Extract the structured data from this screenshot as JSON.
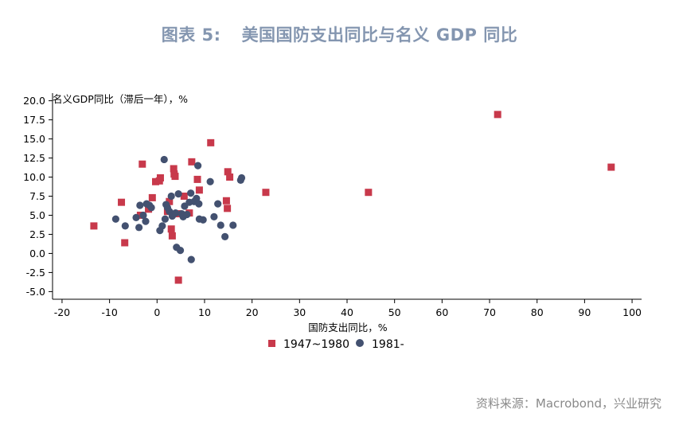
{
  "figure": {
    "number": "图表 5:",
    "title": "美国国防支出同比与名义 GDP 同比",
    "source": "资料来源：Macrobond，兴业研究"
  },
  "colors": {
    "series1": "#c8394b",
    "series2": "#435170",
    "title": "#8496b0"
  },
  "chart_data": {
    "type": "scatter",
    "xlabel": "国防支出同比，%",
    "ylabel": "名义GDP同比（滞后一年），%",
    "xlim": [
      -22,
      102
    ],
    "ylim": [
      -6,
      21
    ],
    "xticks": [
      -20,
      -10,
      0,
      10,
      20,
      30,
      40,
      50,
      60,
      70,
      80,
      90,
      100
    ],
    "xtick_labels": [
      "-20",
      "-10",
      "0",
      "10",
      "20",
      "30",
      "40",
      "50",
      "60",
      "70",
      "80",
      "90",
      "100"
    ],
    "yticks": [
      -5,
      -2.5,
      0,
      2.5,
      5,
      7.5,
      10,
      12.5,
      15,
      17.5,
      20
    ],
    "ytick_labels": [
      "-5.0",
      "-2.5",
      "0.0",
      "2.5",
      "5.0",
      "7.5",
      "10.0",
      "12.5",
      "15.0",
      "17.5",
      "20.0"
    ],
    "grid": false,
    "legend_position": "bottom-center",
    "series": [
      {
        "name": "1947~1980",
        "marker": "square",
        "points": [
          [
            -13.3,
            3.6
          ],
          [
            -7.5,
            6.7
          ],
          [
            -6.8,
            1.4
          ],
          [
            -3.5,
            5.0
          ],
          [
            -3.1,
            11.7
          ],
          [
            -1.8,
            5.8
          ],
          [
            -1.0,
            7.3
          ],
          [
            -0.3,
            9.4
          ],
          [
            0.5,
            9.5
          ],
          [
            0.7,
            9.9
          ],
          [
            2.2,
            5.5
          ],
          [
            2.6,
            6.8
          ],
          [
            3.0,
            3.2
          ],
          [
            3.2,
            2.3
          ],
          [
            3.5,
            11.1
          ],
          [
            3.6,
            10.4
          ],
          [
            3.8,
            10.1
          ],
          [
            4.3,
            5.2
          ],
          [
            4.5,
            -3.5
          ],
          [
            5.7,
            7.5
          ],
          [
            6.8,
            5.3
          ],
          [
            7.3,
            12.0
          ],
          [
            8.5,
            9.7
          ],
          [
            8.9,
            8.3
          ],
          [
            11.3,
            14.5
          ],
          [
            14.6,
            6.9
          ],
          [
            14.8,
            5.9
          ],
          [
            14.9,
            10.7
          ],
          [
            15.3,
            10.0
          ],
          [
            22.9,
            8.0
          ],
          [
            44.5,
            8.0
          ],
          [
            71.7,
            18.2
          ],
          [
            95.6,
            11.3
          ]
        ]
      },
      {
        "name": "1981-",
        "marker": "circle",
        "points": [
          [
            -8.7,
            4.5
          ],
          [
            -6.7,
            3.6
          ],
          [
            -4.4,
            4.7
          ],
          [
            -3.8,
            3.4
          ],
          [
            -3.6,
            6.3
          ],
          [
            -2.9,
            5.0
          ],
          [
            -2.4,
            4.2
          ],
          [
            -2.2,
            6.5
          ],
          [
            -1.6,
            6.3
          ],
          [
            -1.2,
            6.0
          ],
          [
            0.6,
            3.0
          ],
          [
            1.1,
            3.6
          ],
          [
            1.5,
            12.3
          ],
          [
            1.7,
            4.5
          ],
          [
            1.9,
            6.4
          ],
          [
            2.2,
            6.0
          ],
          [
            2.6,
            5.5
          ],
          [
            3.0,
            7.5
          ],
          [
            3.2,
            4.9
          ],
          [
            3.9,
            5.3
          ],
          [
            4.1,
            0.8
          ],
          [
            4.5,
            7.8
          ],
          [
            4.9,
            0.4
          ],
          [
            5.2,
            5.2
          ],
          [
            5.5,
            4.8
          ],
          [
            5.8,
            6.2
          ],
          [
            6.3,
            5.1
          ],
          [
            6.8,
            6.7
          ],
          [
            7.1,
            7.9
          ],
          [
            7.2,
            -0.8
          ],
          [
            7.8,
            6.8
          ],
          [
            8.3,
            7.2
          ],
          [
            8.6,
            11.5
          ],
          [
            8.8,
            6.5
          ],
          [
            8.9,
            4.5
          ],
          [
            9.7,
            4.4
          ],
          [
            11.2,
            9.4
          ],
          [
            12.0,
            4.8
          ],
          [
            12.8,
            6.5
          ],
          [
            13.4,
            3.7
          ],
          [
            14.3,
            2.2
          ],
          [
            16.0,
            3.7
          ],
          [
            17.6,
            9.6
          ],
          [
            17.8,
            9.9
          ]
        ]
      }
    ]
  }
}
